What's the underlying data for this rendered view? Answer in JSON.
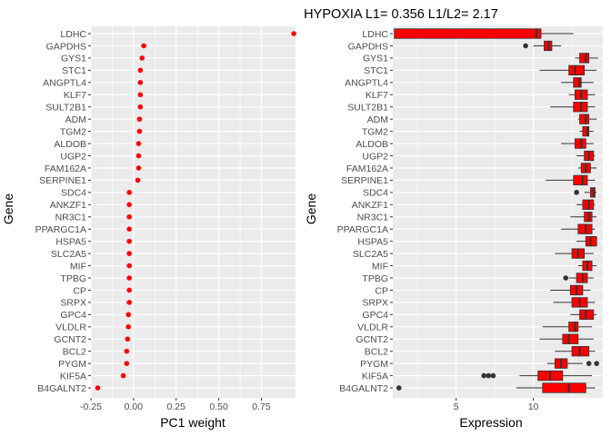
{
  "title": "HYPOXIA L1= 0.356 L1/L2= 2.17",
  "colors": {
    "panel": "#EBEBEB",
    "grid": "#FFFFFF",
    "points": "#FF0000",
    "box_fill": "#FF0000",
    "box_line": "#333333",
    "text": "#4D4D4D"
  },
  "chart_data": [
    {
      "type": "scatter",
      "title": "HYPOXIA L1= 0.356 L1/L2= 2.17",
      "xlabel": "PC1 weight",
      "ylabel": "Gene",
      "xlim": [
        -0.25,
        0.95
      ],
      "x_ticks": [
        "-0.25",
        "0.00",
        "0.25",
        "0.50",
        "0.75"
      ],
      "x_tick_values": [
        -0.25,
        0.0,
        0.25,
        0.5,
        0.75
      ],
      "genes": [
        "LDHC",
        "GAPDHS",
        "GYS1",
        "STC1",
        "ANGPTL4",
        "KLF7",
        "SULT2B1",
        "ADM",
        "TGM2",
        "ALDOB",
        "UGP2",
        "FAM162A",
        "SERPINE1",
        "SDC4",
        "ANKZF1",
        "NR3C1",
        "PPARGC1A",
        "HSPA5",
        "SLC2A5",
        "MIF",
        "TPBG",
        "CP",
        "SRPX",
        "GPC4",
        "VLDLR",
        "GCNT2",
        "BCL2",
        "PYGM",
        "KIF5A",
        "B4GALNT2"
      ],
      "values": [
        0.94,
        0.06,
        0.05,
        0.04,
        0.04,
        0.04,
        0.04,
        0.035,
        0.035,
        0.03,
        0.03,
        0.03,
        0.025,
        -0.025,
        -0.025,
        -0.025,
        -0.025,
        -0.025,
        -0.025,
        -0.025,
        -0.025,
        -0.025,
        -0.025,
        -0.03,
        -0.03,
        -0.035,
        -0.04,
        -0.04,
        -0.06,
        -0.21
      ],
      "grid": true
    },
    {
      "type": "box",
      "xlabel": "Expression",
      "ylabel": "Gene",
      "xlim": [
        0.9,
        14.5
      ],
      "x_ticks": [
        "5",
        "10"
      ],
      "x_tick_values": [
        5,
        10
      ],
      "genes": [
        "LDHC",
        "GAPDHS",
        "GYS1",
        "STC1",
        "ANGPTL4",
        "KLF7",
        "SULT2B1",
        "ADM",
        "TGM2",
        "ALDOB",
        "UGP2",
        "FAM162A",
        "SERPINE1",
        "SDC4",
        "ANKZF1",
        "NR3C1",
        "PPARGC1A",
        "HSPA5",
        "SLC2A5",
        "MIF",
        "TPBG",
        "CP",
        "SRPX",
        "GPC4",
        "VLDLR",
        "GCNT2",
        "BCL2",
        "PYGM",
        "KIF5A",
        "B4GALNT2"
      ],
      "boxes": [
        {
          "min": 1.0,
          "q1": 1.0,
          "median": 10.2,
          "q3": 10.5,
          "max": 12.6,
          "outliers": []
        },
        {
          "min": 10.0,
          "q1": 10.7,
          "median": 11.0,
          "q3": 11.2,
          "max": 11.8,
          "outliers": [
            9.5
          ]
        },
        {
          "min": 12.7,
          "q1": 13.0,
          "median": 13.4,
          "q3": 13.6,
          "max": 14.2,
          "outliers": []
        },
        {
          "min": 10.4,
          "q1": 12.3,
          "median": 12.7,
          "q3": 13.3,
          "max": 14.1,
          "outliers": []
        },
        {
          "min": 11.8,
          "q1": 12.6,
          "median": 13.0,
          "q3": 13.1,
          "max": 13.9,
          "outliers": []
        },
        {
          "min": 12.3,
          "q1": 12.7,
          "median": 13.1,
          "q3": 13.5,
          "max": 14.0,
          "outliers": []
        },
        {
          "min": 11.1,
          "q1": 12.6,
          "median": 13.1,
          "q3": 13.5,
          "max": 14.0,
          "outliers": []
        },
        {
          "min": 12.9,
          "q1": 13.0,
          "median": 13.4,
          "q3": 13.6,
          "max": 14.1,
          "outliers": []
        },
        {
          "min": 13.0,
          "q1": 13.2,
          "median": 13.5,
          "q3": 13.6,
          "max": 13.9,
          "outliers": []
        },
        {
          "min": 11.8,
          "q1": 12.7,
          "median": 13.1,
          "q3": 13.4,
          "max": 13.9,
          "outliers": []
        },
        {
          "min": 12.8,
          "q1": 13.3,
          "median": 13.6,
          "q3": 13.9,
          "max": 14.0,
          "outliers": []
        },
        {
          "min": 12.9,
          "q1": 13.1,
          "median": 13.4,
          "q3": 13.7,
          "max": 14.1,
          "outliers": []
        },
        {
          "min": 10.8,
          "q1": 12.6,
          "median": 13.2,
          "q3": 13.5,
          "max": 14.0,
          "outliers": []
        },
        {
          "min": 13.3,
          "q1": 13.7,
          "median": 13.9,
          "q3": 14.0,
          "max": 14.1,
          "outliers": [
            12.8
          ]
        },
        {
          "min": 12.8,
          "q1": 13.2,
          "median": 13.6,
          "q3": 13.9,
          "max": 14.0,
          "outliers": []
        },
        {
          "min": 12.4,
          "q1": 13.3,
          "median": 13.6,
          "q3": 13.8,
          "max": 14.1,
          "outliers": []
        },
        {
          "min": 11.8,
          "q1": 12.9,
          "median": 13.4,
          "q3": 13.8,
          "max": 14.0,
          "outliers": []
        },
        {
          "min": 12.8,
          "q1": 13.4,
          "median": 13.7,
          "q3": 14.1,
          "max": 14.1,
          "outliers": []
        },
        {
          "min": 11.4,
          "q1": 12.5,
          "median": 12.9,
          "q3": 13.3,
          "max": 13.9,
          "outliers": []
        },
        {
          "min": 12.9,
          "q1": 13.2,
          "median": 13.5,
          "q3": 13.8,
          "max": 14.1,
          "outliers": []
        },
        {
          "min": 12.3,
          "q1": 12.8,
          "median": 13.2,
          "q3": 13.5,
          "max": 13.9,
          "outliers": [
            12.1
          ]
        },
        {
          "min": 11.1,
          "q1": 12.4,
          "median": 12.8,
          "q3": 13.2,
          "max": 13.7,
          "outliers": []
        },
        {
          "min": 11.3,
          "q1": 12.5,
          "median": 13.0,
          "q3": 13.5,
          "max": 14.0,
          "outliers": []
        },
        {
          "min": 12.4,
          "q1": 13.0,
          "median": 13.4,
          "q3": 13.9,
          "max": 14.1,
          "outliers": []
        },
        {
          "min": 10.6,
          "q1": 12.3,
          "median": 12.7,
          "q3": 12.9,
          "max": 13.8,
          "outliers": []
        },
        {
          "min": 10.4,
          "q1": 11.9,
          "median": 12.3,
          "q3": 12.9,
          "max": 13.9,
          "outliers": []
        },
        {
          "min": 11.4,
          "q1": 12.5,
          "median": 13.0,
          "q3": 13.6,
          "max": 14.0,
          "outliers": []
        },
        {
          "min": 10.9,
          "q1": 11.4,
          "median": 11.8,
          "q3": 12.2,
          "max": 13.2,
          "outliers": [
            13.6,
            14.1
          ]
        },
        {
          "min": 9.1,
          "q1": 10.3,
          "median": 11.1,
          "q3": 11.9,
          "max": 13.8,
          "outliers": [
            6.8,
            7.1,
            7.4
          ]
        },
        {
          "min": 8.9,
          "q1": 10.6,
          "median": 12.3,
          "q3": 13.4,
          "max": 14.0,
          "outliers": [
            1.3
          ]
        }
      ],
      "grid": true
    }
  ]
}
